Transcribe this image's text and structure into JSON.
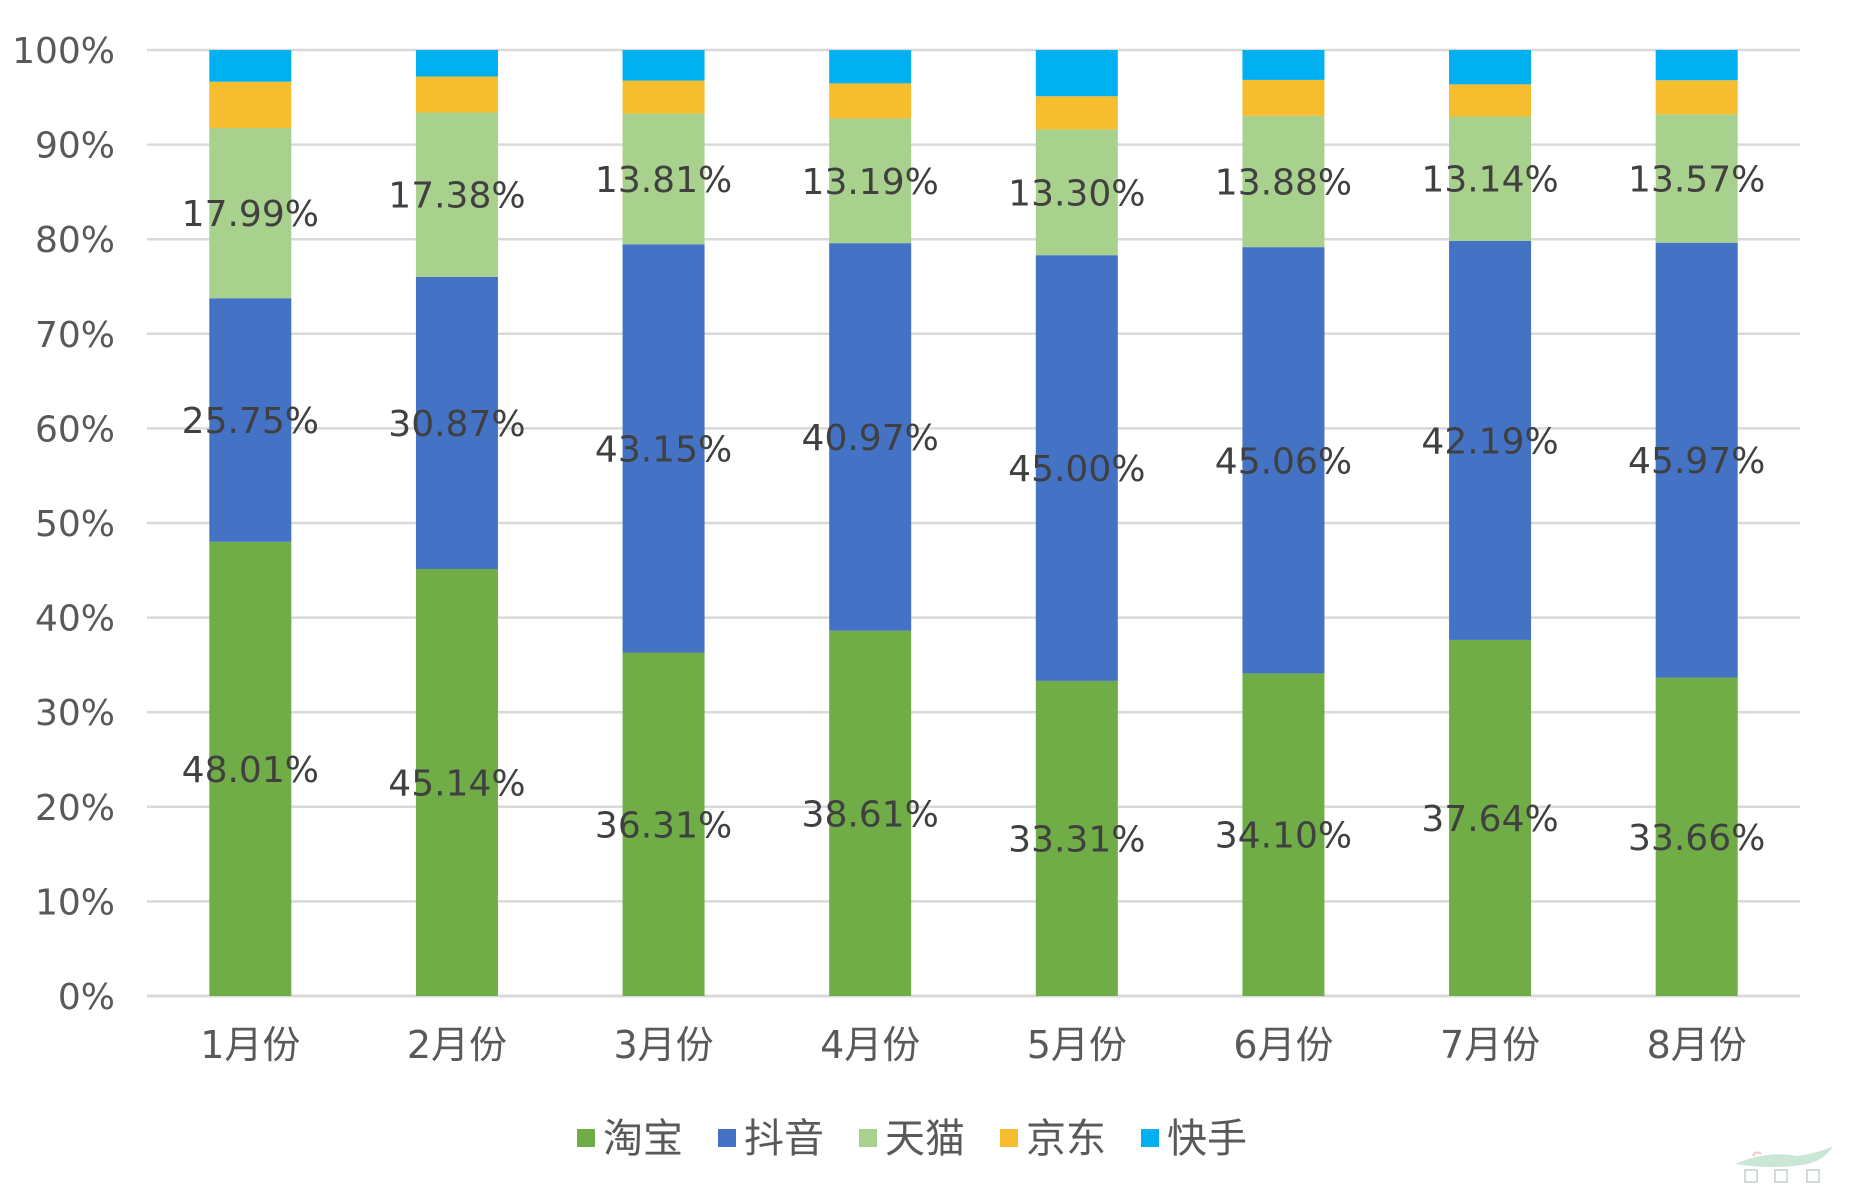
{
  "chart_data": {
    "type": "bar",
    "stacked": true,
    "percent_stacked": true,
    "categories": [
      "1月份",
      "2月份",
      "3月份",
      "4月份",
      "5月份",
      "6月份",
      "7月份",
      "8月份"
    ],
    "series": [
      {
        "name": "淘宝",
        "color": "#70AD47",
        "values": [
          48.01,
          45.14,
          36.31,
          38.61,
          33.31,
          34.1,
          37.64,
          33.66
        ],
        "labels": [
          "48.01%",
          "45.14%",
          "36.31%",
          "38.61%",
          "33.31%",
          "34.10%",
          "37.64%",
          "33.66%"
        ]
      },
      {
        "name": "抖音",
        "color": "#4472C4",
        "values": [
          25.75,
          30.87,
          43.15,
          40.97,
          45.0,
          45.06,
          42.19,
          45.97
        ],
        "labels": [
          "25.75%",
          "30.87%",
          "43.15%",
          "40.97%",
          "45.00%",
          "45.06%",
          "42.19%",
          "45.97%"
        ]
      },
      {
        "name": "天猫",
        "color": "#A9D18E",
        "values": [
          17.99,
          17.38,
          13.81,
          13.19,
          13.3,
          13.88,
          13.14,
          13.57
        ],
        "labels": [
          "17.99%",
          "17.38%",
          "13.81%",
          "13.19%",
          "13.30%",
          "13.88%",
          "13.14%",
          "13.57%"
        ]
      },
      {
        "name": "京东",
        "color": "#F6BE2E",
        "values": [
          4.9,
          3.8,
          3.5,
          3.7,
          3.5,
          3.8,
          3.4,
          3.6
        ],
        "labels": []
      },
      {
        "name": "快手",
        "color": "#00B0F0",
        "values": [
          3.35,
          2.81,
          3.23,
          3.52,
          4.89,
          3.16,
          3.63,
          3.2
        ],
        "labels": []
      }
    ],
    "yticks": [
      "0%",
      "10%",
      "20%",
      "30%",
      "40%",
      "50%",
      "60%",
      "70%",
      "80%",
      "90%",
      "100%"
    ],
    "ylim": [
      0,
      100
    ],
    "grid": true,
    "legend_position": "bottom",
    "title": "",
    "xlabel": "",
    "ylabel": ""
  },
  "colors": {
    "grid": "#D9D9D9",
    "axis": "#D9D9D9",
    "tick_text": "#595959",
    "label_text": "#404040"
  },
  "watermark": {
    "icon": "watermark-logo-icon"
  }
}
